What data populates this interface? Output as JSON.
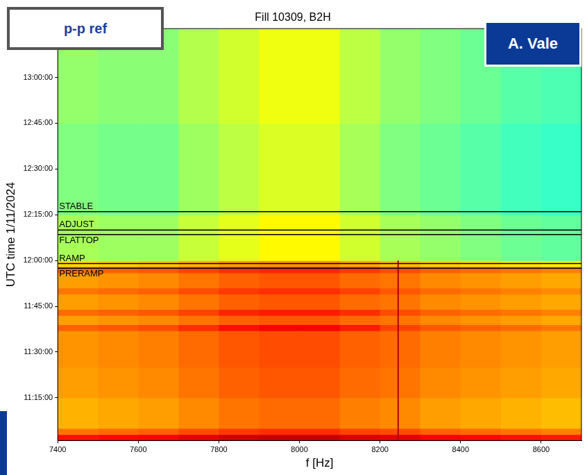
{
  "chart_data": {
    "type": "heatmap",
    "title": "Fill 10309, B2H",
    "x_label": "f [Hz]",
    "y_label": "UTC time 1/11/2024",
    "xlim": [
      7400,
      8700
    ],
    "xticks": [
      7400,
      7600,
      7800,
      8000,
      8200,
      8400,
      8600
    ],
    "ylim": [
      661,
      796
    ],
    "yticks": [
      {
        "value": 675,
        "label": "11:15:00"
      },
      {
        "value": 690,
        "label": "11:30:00"
      },
      {
        "value": 705,
        "label": "11:45:00"
      },
      {
        "value": 720,
        "label": "12:00:00"
      },
      {
        "value": 735,
        "label": "12:15:00"
      },
      {
        "value": 750,
        "label": "12:30:00"
      },
      {
        "value": 765,
        "label": "12:45:00"
      },
      {
        "value": 780,
        "label": "13:00:00"
      }
    ],
    "grid": false,
    "x_edges": [
      7400,
      7500,
      7600,
      7700,
      7800,
      7900,
      8000,
      8100,
      8200,
      8300,
      8400,
      8500,
      8600,
      8700
    ],
    "y_edges": [
      661,
      663,
      665,
      675,
      685,
      697,
      699,
      702,
      704,
      709,
      711,
      716,
      718,
      720,
      735,
      765,
      796
    ],
    "zlim": [
      0,
      10
    ],
    "cells": [
      [
        8.6,
        8.7,
        8.8,
        9.0,
        9.2,
        9.3,
        9.3,
        9.1,
        9.0,
        8.8,
        8.7,
        8.6,
        8.5
      ],
      [
        7.6,
        7.7,
        7.8,
        8.0,
        8.2,
        8.3,
        8.3,
        8.1,
        8.0,
        7.8,
        7.7,
        7.6,
        7.5
      ],
      [
        7.0,
        7.1,
        7.2,
        7.4,
        7.6,
        7.7,
        7.7,
        7.5,
        7.4,
        7.2,
        7.1,
        7.0,
        6.9
      ],
      [
        7.2,
        7.3,
        7.4,
        7.6,
        7.8,
        7.9,
        7.9,
        7.7,
        7.6,
        7.4,
        7.3,
        7.2,
        7.1
      ],
      [
        7.3,
        7.4,
        7.5,
        7.7,
        7.9,
        8.0,
        8.0,
        7.8,
        7.7,
        7.5,
        7.4,
        7.3,
        7.2
      ],
      [
        7.8,
        7.9,
        8.0,
        8.3,
        8.6,
        8.8,
        8.8,
        8.5,
        8.1,
        7.9,
        7.8,
        7.7,
        7.6
      ],
      [
        7.2,
        7.3,
        7.4,
        7.6,
        7.8,
        7.9,
        7.9,
        7.7,
        7.6,
        7.4,
        7.3,
        7.2,
        7.1
      ],
      [
        7.7,
        7.8,
        7.9,
        8.1,
        8.4,
        8.5,
        8.5,
        8.3,
        8.0,
        7.8,
        7.7,
        7.6,
        7.5
      ],
      [
        7.2,
        7.3,
        7.4,
        7.6,
        7.8,
        7.9,
        7.9,
        7.7,
        7.6,
        7.4,
        7.3,
        7.2,
        7.1
      ],
      [
        7.6,
        7.7,
        7.8,
        8.0,
        8.2,
        8.3,
        8.3,
        8.1,
        7.9,
        7.7,
        7.6,
        7.5,
        7.4
      ],
      [
        7.2,
        7.3,
        7.4,
        7.6,
        7.8,
        7.9,
        7.9,
        7.7,
        7.6,
        7.4,
        7.3,
        7.2,
        7.1
      ],
      [
        7.7,
        7.8,
        7.9,
        8.1,
        8.3,
        8.4,
        8.4,
        8.2,
        8.0,
        7.8,
        7.7,
        7.6,
        7.5
      ],
      [
        6.6,
        6.7,
        6.8,
        7.0,
        7.2,
        7.3,
        7.3,
        7.1,
        6.9,
        6.7,
        6.6,
        6.5,
        6.4
      ],
      [
        5.4,
        5.3,
        5.3,
        5.7,
        6.0,
        6.3,
        6.3,
        5.8,
        5.4,
        5.2,
        5.0,
        4.8,
        4.7
      ],
      [
        5.0,
        4.9,
        4.9,
        5.3,
        5.6,
        5.9,
        5.9,
        5.4,
        5.0,
        4.8,
        4.6,
        4.4,
        4.3
      ],
      [
        5.2,
        5.1,
        5.1,
        5.5,
        5.8,
        6.1,
        6.1,
        5.6,
        5.2,
        5.0,
        4.8,
        4.6,
        4.5
      ]
    ],
    "vertical_lines": [
      {
        "x": 8245,
        "y": [
          661,
          720
        ],
        "color": "#b40000"
      }
    ],
    "events": [
      {
        "label": "STABLE",
        "y": 736
      },
      {
        "label": "ADJUST",
        "y": 730
      },
      {
        "label": "FLATTOP",
        "y": 728.5
      },
      {
        "label": "RAMP",
        "y": 719
      },
      {
        "label": "PRERAMP",
        "y": 717.5
      }
    ],
    "event_color": "#000000"
  },
  "labels": {
    "top_left": "p-p ref",
    "top_right": "A. Vale"
  }
}
